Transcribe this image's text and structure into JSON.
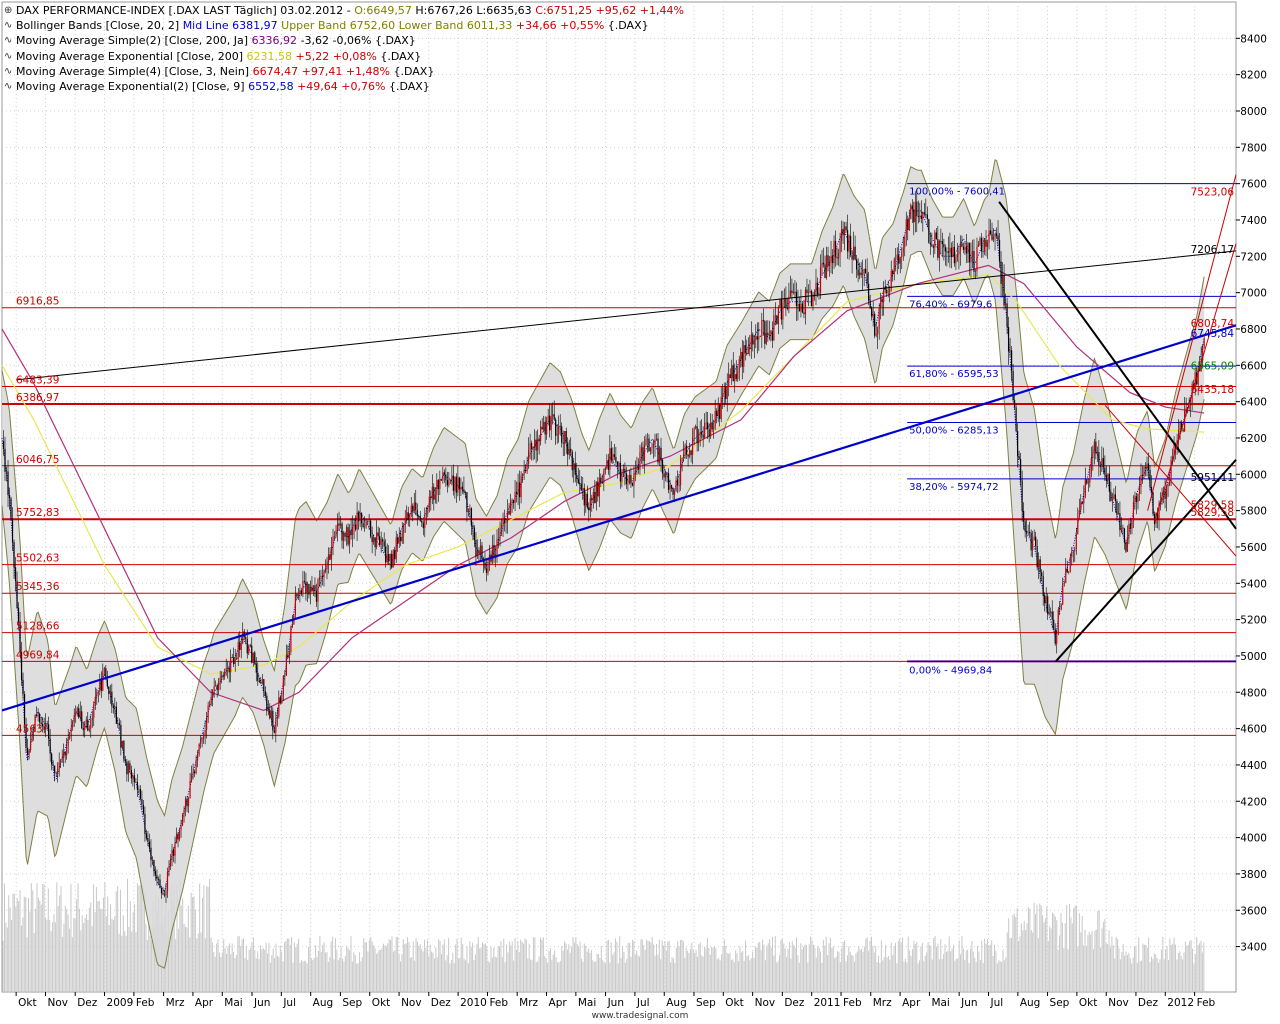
{
  "legend": {
    "main": {
      "name": "DAX PERFORMANCE-INDEX [.DAX LAST Täglich] 03.02.2012 -",
      "o": "O:6649,57",
      "h": "H:6767,26",
      "l": "L:6635,63",
      "c": "C:6751,25",
      "chg": "+95,62",
      "pct": "+1,44%"
    },
    "bb": {
      "name": "Bollinger Bands [Close, 20, 2]",
      "mid_label": "Mid Line",
      "mid": "6381,97",
      "upper_label": "Upper Band",
      "upper": "6752,60",
      "lower_label": "Lower Band",
      "lower": "6011,33",
      "chg": "+34,66",
      "pct": "+0,55%",
      "sym": "{.DAX}"
    },
    "sma200": {
      "name": "Moving Average Simple(2) [Close, 200, Ja]",
      "val": "6336,92",
      "chg": "-3,62",
      "pct": "-0,06%",
      "sym": "{.DAX}"
    },
    "ema200": {
      "name": "Moving Average Exponential [Close, 200]",
      "val": "6231,58",
      "chg": "+5,22",
      "pct": "+0,08%",
      "sym": "{.DAX}"
    },
    "sma3": {
      "name": "Moving Average Simple(4) [Close, 3, Nein]",
      "val": "6674,47",
      "chg": "+97,41",
      "pct": "+1,48%",
      "sym": "{.DAX}"
    },
    "ema9": {
      "name": "Moving Average Exponential(2) [Close, 9]",
      "val": "6552,58",
      "chg": "+49,64",
      "pct": "+0,76%",
      "sym": "{.DAX}"
    }
  },
  "footer": "www.tradesignal.com",
  "colors": {
    "up": "#cc0000",
    "down": "#000000",
    "band_fill": "#d8d8d8",
    "band_line": "#808040",
    "sma200": "#b0307a",
    "ema200": "#e8e850",
    "ema9": "#0000dd",
    "trend_blue": "#0000cc",
    "hline": "#cc0000",
    "fib": "#0000cc",
    "volume": "#c8c8c8"
  },
  "chart_data": {
    "type": "candlestick",
    "title": "DAX PERFORMANCE-INDEX",
    "ylim": [
      3150,
      8600
    ],
    "y_ticks": [
      3400,
      3600,
      3800,
      4000,
      4200,
      4400,
      4600,
      4800,
      5000,
      5200,
      5400,
      5600,
      5800,
      6000,
      6200,
      6400,
      6600,
      6800,
      7000,
      7200,
      7400,
      7600,
      7800,
      8000,
      8200,
      8400
    ],
    "y_tick_labels": [
      "3400",
      "3600",
      "3800",
      "4000",
      "4200",
      "4400",
      "4600",
      "4800",
      "5000",
      "5200",
      "5400",
      "5600",
      "5800",
      "6000",
      "6200",
      "6400",
      "6600",
      "6800",
      "7000",
      "7200",
      "7400",
      "7600",
      "7800",
      "8000",
      "8200",
      "8400"
    ],
    "x_labels": [
      "Okt",
      "Nov",
      "Dez",
      "2009",
      "Feb",
      "Mrz",
      "Apr",
      "Mai",
      "Jun",
      "Jul",
      "Aug",
      "Sep",
      "Okt",
      "Nov",
      "Dez",
      "2010",
      "Feb",
      "Mrz",
      "Apr",
      "Mai",
      "Jun",
      "Jul",
      "Aug",
      "Sep",
      "Okt",
      "Nov",
      "Dez",
      "2011",
      "Feb",
      "Mrz",
      "Apr",
      "Mai",
      "Jun",
      "Jul",
      "Aug",
      "Sep",
      "Okt",
      "Nov",
      "Dez",
      "2012",
      "Feb"
    ],
    "x_values": [
      2008.75,
      2008.833,
      2008.917,
      2009.0,
      2009.083,
      2009.167,
      2009.25,
      2009.333,
      2009.417,
      2009.5,
      2009.583,
      2009.667,
      2009.75,
      2009.833,
      2009.917,
      2010.0,
      2010.083,
      2010.167,
      2010.25,
      2010.333,
      2010.417,
      2010.5,
      2010.583,
      2010.667,
      2010.75,
      2010.833,
      2010.917,
      2011.0,
      2011.083,
      2011.167,
      2011.25,
      2011.333,
      2011.417,
      2011.5,
      2011.583,
      2011.667,
      2011.75,
      2011.833,
      2011.917,
      2012.0,
      2012.083
    ],
    "xlim": [
      2008.71,
      2012.2
    ],
    "close_path": [
      [
        2008.71,
        6200
      ],
      [
        2008.73,
        5900
      ],
      [
        2008.76,
        5100
      ],
      [
        2008.78,
        4400
      ],
      [
        2008.81,
        4700
      ],
      [
        2008.84,
        4600
      ],
      [
        2008.86,
        4300
      ],
      [
        2008.89,
        4500
      ],
      [
        2008.92,
        4700
      ],
      [
        2008.95,
        4600
      ],
      [
        2008.98,
        4800
      ],
      [
        2009.0,
        4900
      ],
      [
        2009.03,
        4700
      ],
      [
        2009.06,
        4400
      ],
      [
        2009.09,
        4300
      ],
      [
        2009.12,
        4000
      ],
      [
        2009.15,
        3750
      ],
      [
        2009.17,
        3700
      ],
      [
        2009.19,
        3900
      ],
      [
        2009.22,
        4100
      ],
      [
        2009.25,
        4350
      ],
      [
        2009.28,
        4600
      ],
      [
        2009.31,
        4800
      ],
      [
        2009.34,
        4900
      ],
      [
        2009.37,
        5000
      ],
      [
        2009.39,
        5100
      ],
      [
        2009.42,
        5000
      ],
      [
        2009.45,
        4800
      ],
      [
        2009.48,
        4600
      ],
      [
        2009.51,
        4900
      ],
      [
        2009.54,
        5300
      ],
      [
        2009.57,
        5400
      ],
      [
        2009.6,
        5350
      ],
      [
        2009.63,
        5500
      ],
      [
        2009.66,
        5700
      ],
      [
        2009.69,
        5650
      ],
      [
        2009.72,
        5800
      ],
      [
        2009.75,
        5700
      ],
      [
        2009.78,
        5600
      ],
      [
        2009.81,
        5500
      ],
      [
        2009.84,
        5700
      ],
      [
        2009.87,
        5800
      ],
      [
        2009.9,
        5750
      ],
      [
        2009.93,
        5900
      ],
      [
        2009.96,
        6000
      ],
      [
        2009.99,
        5950
      ],
      [
        2010.02,
        5900
      ],
      [
        2010.05,
        5600
      ],
      [
        2010.08,
        5500
      ],
      [
        2010.11,
        5600
      ],
      [
        2010.14,
        5800
      ],
      [
        2010.17,
        5900
      ],
      [
        2010.2,
        6100
      ],
      [
        2010.23,
        6200
      ],
      [
        2010.26,
        6300
      ],
      [
        2010.29,
        6250
      ],
      [
        2010.32,
        6100
      ],
      [
        2010.35,
        5900
      ],
      [
        2010.37,
        5800
      ],
      [
        2010.4,
        5950
      ],
      [
        2010.43,
        6100
      ],
      [
        2010.46,
        6000
      ],
      [
        2010.49,
        5950
      ],
      [
        2010.52,
        6100
      ],
      [
        2010.55,
        6200
      ],
      [
        2010.58,
        6050
      ],
      [
        2010.61,
        5900
      ],
      [
        2010.64,
        6100
      ],
      [
        2010.67,
        6200
      ],
      [
        2010.7,
        6250
      ],
      [
        2010.73,
        6300
      ],
      [
        2010.76,
        6500
      ],
      [
        2010.79,
        6600
      ],
      [
        2010.82,
        6700
      ],
      [
        2010.85,
        6800
      ],
      [
        2010.88,
        6750
      ],
      [
        2010.91,
        6900
      ],
      [
        2010.94,
        6950
      ],
      [
        2010.97,
        6950
      ],
      [
        2011.0,
        6950
      ],
      [
        2011.03,
        7100
      ],
      [
        2011.06,
        7200
      ],
      [
        2011.09,
        7350
      ],
      [
        2011.12,
        7200
      ],
      [
        2011.15,
        7100
      ],
      [
        2011.18,
        6800
      ],
      [
        2011.2,
        7000
      ],
      [
        2011.23,
        7100
      ],
      [
        2011.26,
        7300
      ],
      [
        2011.28,
        7450
      ],
      [
        2011.31,
        7450
      ],
      [
        2011.34,
        7300
      ],
      [
        2011.37,
        7200
      ],
      [
        2011.4,
        7200
      ],
      [
        2011.43,
        7300
      ],
      [
        2011.46,
        7150
      ],
      [
        2011.49,
        7300
      ],
      [
        2011.52,
        7350
      ],
      [
        2011.55,
        6900
      ],
      [
        2011.58,
        6200
      ],
      [
        2011.6,
        5700
      ],
      [
        2011.63,
        5600
      ],
      [
        2011.66,
        5300
      ],
      [
        2011.69,
        5100
      ],
      [
        2011.71,
        5400
      ],
      [
        2011.74,
        5600
      ],
      [
        2011.77,
        5900
      ],
      [
        2011.8,
        6150
      ],
      [
        2011.83,
        6000
      ],
      [
        2011.86,
        5800
      ],
      [
        2011.89,
        5600
      ],
      [
        2011.92,
        5900
      ],
      [
        2011.95,
        6050
      ],
      [
        2011.97,
        5750
      ],
      [
        2012.0,
        5900
      ],
      [
        2012.03,
        6150
      ],
      [
        2012.06,
        6350
      ],
      [
        2012.09,
        6550
      ],
      [
        2012.11,
        6751
      ]
    ],
    "band_width_pct": [
      [
        2008.71,
        0.06
      ],
      [
        2008.78,
        0.13
      ],
      [
        2008.9,
        0.08
      ],
      [
        2009.0,
        0.06
      ],
      [
        2009.15,
        0.12
      ],
      [
        2009.3,
        0.07
      ],
      [
        2009.45,
        0.06
      ],
      [
        2009.55,
        0.09
      ],
      [
        2009.7,
        0.04
      ],
      [
        2009.9,
        0.04
      ],
      [
        2010.1,
        0.05
      ],
      [
        2010.3,
        0.05
      ],
      [
        2010.4,
        0.06
      ],
      [
        2010.6,
        0.04
      ],
      [
        2010.8,
        0.03
      ],
      [
        2011.0,
        0.03
      ],
      [
        2011.15,
        0.05
      ],
      [
        2011.3,
        0.03
      ],
      [
        2011.5,
        0.03
      ],
      [
        2011.6,
        0.15
      ],
      [
        2011.7,
        0.1
      ],
      [
        2011.85,
        0.07
      ],
      [
        2011.95,
        0.05
      ],
      [
        2012.11,
        0.05
      ]
    ],
    "sma200_path": [
      [
        2008.71,
        6800
      ],
      [
        2008.8,
        6500
      ],
      [
        2008.9,
        6100
      ],
      [
        2009.0,
        5700
      ],
      [
        2009.15,
        5100
      ],
      [
        2009.3,
        4800
      ],
      [
        2009.45,
        4700
      ],
      [
        2009.55,
        4800
      ],
      [
        2009.7,
        5100
      ],
      [
        2009.85,
        5300
      ],
      [
        2010.0,
        5500
      ],
      [
        2010.15,
        5650
      ],
      [
        2010.3,
        5850
      ],
      [
        2010.45,
        6000
      ],
      [
        2010.6,
        6100
      ],
      [
        2010.8,
        6300
      ],
      [
        2010.95,
        6650
      ],
      [
        2011.1,
        6900
      ],
      [
        2011.3,
        7050
      ],
      [
        2011.5,
        7150
      ],
      [
        2011.6,
        7050
      ],
      [
        2011.75,
        6700
      ],
      [
        2011.9,
        6450
      ],
      [
        2012.0,
        6370
      ],
      [
        2012.11,
        6337
      ]
    ],
    "ema200_path": [
      [
        2008.71,
        6600
      ],
      [
        2008.8,
        6300
      ],
      [
        2008.9,
        5900
      ],
      [
        2009.0,
        5500
      ],
      [
        2009.15,
        5050
      ],
      [
        2009.3,
        4900
      ],
      [
        2009.45,
        4950
      ],
      [
        2009.55,
        5050
      ],
      [
        2009.7,
        5300
      ],
      [
        2009.85,
        5500
      ],
      [
        2010.0,
        5600
      ],
      [
        2010.15,
        5750
      ],
      [
        2010.3,
        5900
      ],
      [
        2010.45,
        5950
      ],
      [
        2010.6,
        6050
      ],
      [
        2010.8,
        6350
      ],
      [
        2010.95,
        6650
      ],
      [
        2011.1,
        6950
      ],
      [
        2011.3,
        7050
      ],
      [
        2011.5,
        7100
      ],
      [
        2011.58,
        6950
      ],
      [
        2011.7,
        6600
      ],
      [
        2011.85,
        6300
      ],
      [
        2011.95,
        6250
      ],
      [
        2012.11,
        6232
      ]
    ],
    "horizontal_levels": [
      {
        "value": 6916.85,
        "label": "6916,85"
      },
      {
        "value": 6483.39,
        "label": "6483,39"
      },
      {
        "value": 6386.97,
        "label": "6386,97"
      },
      {
        "value": 6046.75,
        "label": "6046,75"
      },
      {
        "value": 5752.83,
        "label": "5752,83"
      },
      {
        "value": 5502.63,
        "label": "5502,63"
      },
      {
        "value": 5345.36,
        "label": "5345,36"
      },
      {
        "value": 5128.66,
        "label": "5128,66"
      },
      {
        "value": 4969.84,
        "label": "4969,84"
      },
      {
        "value": 4563.0,
        "label": "4563,"
      }
    ],
    "right_level_labels": [
      {
        "value": 7523.0,
        "label": "7523,06"
      },
      {
        "value": 7206.17,
        "label": "7206,17"
      },
      {
        "value": 6800.0,
        "label": "6803,74"
      },
      {
        "value": 6745.84,
        "label": "6745,84"
      },
      {
        "value": 6565.09,
        "label": "6565,09"
      },
      {
        "value": 6435.18,
        "label": "6435,18"
      },
      {
        "value": 5951.11,
        "label": "5951,11"
      },
      {
        "value": 5800.0,
        "label": "5829,58"
      },
      {
        "value": 5760.0,
        "label": "5829,58"
      }
    ],
    "fibonacci": {
      "x_start": 2011.27,
      "x_end": 2012.11,
      "levels": [
        {
          "value": 7600.41,
          "label": "100,00% - 7600,41"
        },
        {
          "value": 6979.6,
          "label": "76,40% - 6979,6"
        },
        {
          "value": 6595.53,
          "label": "61,80% - 6595,53"
        },
        {
          "value": 6285.13,
          "label": "50,00% - 6285,13"
        },
        {
          "value": 5974.72,
          "label": "38,20% - 5974,72"
        },
        {
          "value": 4969.84,
          "label": "0,00% - 4969,84"
        }
      ]
    },
    "trendlines": [
      {
        "name": "blue-support",
        "color": "#0000cc",
        "width": 2.2,
        "x1": 2008.71,
        "y1": 4700,
        "x2": 2012.2,
        "y2": 6820
      },
      {
        "name": "black-long",
        "color": "#000000",
        "width": 1,
        "x1": 2008.75,
        "y1": 6520,
        "x2": 2012.2,
        "y2": 7230
      },
      {
        "name": "black-down",
        "color": "#000000",
        "width": 2,
        "x1": 2011.53,
        "y1": 7500,
        "x2": 2012.2,
        "y2": 5700
      },
      {
        "name": "black-up",
        "color": "#000000",
        "width": 2,
        "x1": 2011.69,
        "y1": 4969,
        "x2": 2012.2,
        "y2": 6080
      },
      {
        "name": "red-upper",
        "color": "#cc0000",
        "width": 1,
        "x1": 2011.95,
        "y1": 5800,
        "x2": 2012.2,
        "y2": 7650
      },
      {
        "name": "red-lower",
        "color": "#cc0000",
        "width": 1,
        "x1": 2011.97,
        "y1": 5740,
        "x2": 2012.2,
        "y2": 7270
      },
      {
        "name": "red-falling",
        "color": "#cc0000",
        "width": 1,
        "x1": 2011.83,
        "y1": 6380,
        "x2": 2012.2,
        "y2": 5550
      }
    ]
  }
}
